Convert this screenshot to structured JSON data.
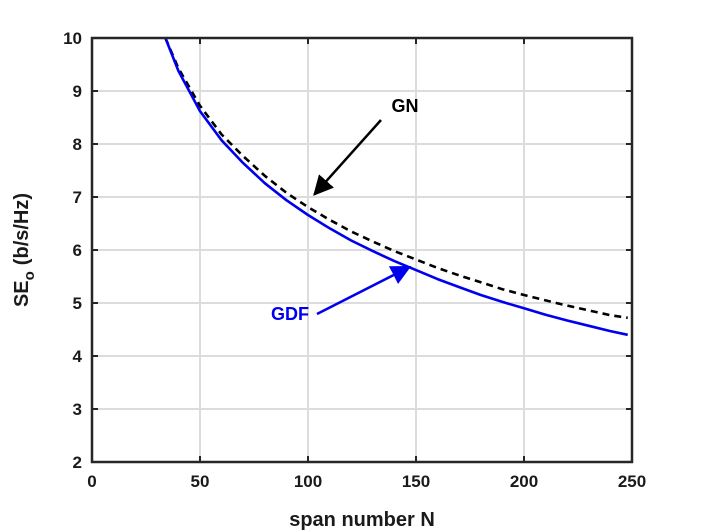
{
  "chart_data": {
    "type": "line",
    "xlabel": "span number N",
    "ylabel_main": "SE",
    "ylabel_sub": "o",
    "ylabel_unit": "(b/s/Hz)",
    "xlim": [
      0,
      250
    ],
    "ylim": [
      2,
      10
    ],
    "xticks": [
      0,
      50,
      100,
      150,
      200,
      250
    ],
    "yticks": [
      2,
      3,
      4,
      5,
      6,
      7,
      8,
      9,
      10
    ],
    "grid": true,
    "series": [
      {
        "name": "GN",
        "color": "#000000",
        "style": "dashed",
        "x": [
          34,
          40,
          50,
          60,
          70,
          80,
          90,
          100,
          110,
          120,
          130,
          140,
          150,
          160,
          170,
          180,
          190,
          200,
          210,
          220,
          230,
          240,
          248
        ],
        "y": [
          10.0,
          9.43,
          8.72,
          8.18,
          7.77,
          7.4,
          7.08,
          6.81,
          6.57,
          6.35,
          6.16,
          5.98,
          5.82,
          5.66,
          5.52,
          5.39,
          5.26,
          5.15,
          5.05,
          4.95,
          4.86,
          4.77,
          4.72
        ]
      },
      {
        "name": "GDF",
        "color": "#0000ee",
        "style": "solid",
        "x": [
          34,
          40,
          50,
          60,
          70,
          80,
          90,
          100,
          110,
          120,
          130,
          140,
          150,
          160,
          170,
          180,
          190,
          200,
          210,
          220,
          230,
          240,
          248
        ],
        "y": [
          10.0,
          9.38,
          8.62,
          8.07,
          7.64,
          7.26,
          6.94,
          6.66,
          6.41,
          6.18,
          5.98,
          5.79,
          5.62,
          5.45,
          5.3,
          5.15,
          5.02,
          4.9,
          4.78,
          4.67,
          4.57,
          4.47,
          4.4
        ]
      }
    ],
    "annotations": [
      {
        "text": "GN",
        "color": "#000000",
        "points_to": [
          103,
          7.05
        ]
      },
      {
        "text": "GDF",
        "color": "#0000ee",
        "points_to": [
          147,
          5.68
        ]
      }
    ]
  }
}
